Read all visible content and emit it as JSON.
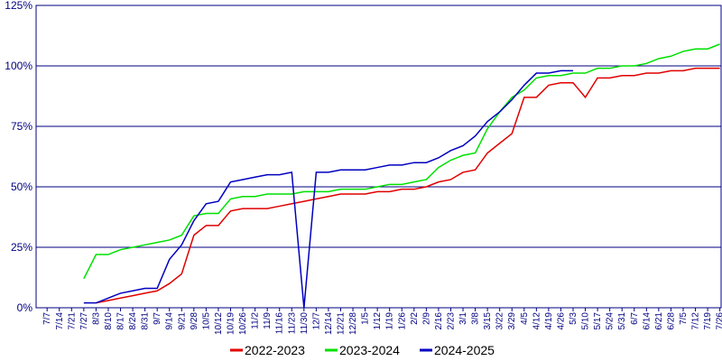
{
  "chart_data": {
    "type": "line",
    "categories": [
      "7/7",
      "7/14",
      "7/21",
      "7/27",
      "8/3",
      "8/10",
      "8/17",
      "8/24",
      "8/31",
      "9/7",
      "9/14",
      "9/21",
      "9/28",
      "10/5",
      "10/12",
      "10/19",
      "10/26",
      "11/2",
      "11/9",
      "11/16",
      "11/23",
      "11/30",
      "12/7",
      "12/14",
      "12/21",
      "12/28",
      "1/5",
      "1/12",
      "1/19",
      "1/26",
      "2/2",
      "2/9",
      "2/16",
      "2/23",
      "3/1",
      "3/8",
      "3/15",
      "3/22",
      "3/29",
      "4/5",
      "4/12",
      "4/19",
      "4/26",
      "5/3",
      "5/10",
      "5/17",
      "5/24",
      "5/31",
      "6/7",
      "6/14",
      "6/21",
      "6/28",
      "7/5",
      "7/12",
      "7/19",
      "7/26"
    ],
    "series": [
      {
        "name": "2022-2023",
        "color": "#e00000",
        "values": [
          null,
          null,
          null,
          null,
          2,
          3,
          4,
          5,
          6,
          7,
          10,
          14,
          30,
          34,
          34,
          40,
          41,
          41,
          41,
          42,
          43,
          44,
          45,
          46,
          47,
          47,
          47,
          48,
          48,
          49,
          49,
          50,
          52,
          53,
          56,
          57,
          64,
          68,
          72,
          87,
          87,
          92,
          93,
          93,
          87,
          95,
          95,
          96,
          96,
          97,
          97,
          98,
          98,
          99,
          99,
          99
        ]
      },
      {
        "name": "2023-2024",
        "color": "#00e000",
        "values": [
          null,
          null,
          null,
          12,
          22,
          22,
          24,
          25,
          26,
          27,
          28,
          30,
          38,
          39,
          39,
          45,
          46,
          46,
          47,
          47,
          47,
          48,
          48,
          48,
          49,
          49,
          49,
          50,
          51,
          51,
          52,
          53,
          58,
          61,
          63,
          64,
          74,
          81,
          87,
          90,
          95,
          96,
          96,
          97,
          97,
          99,
          99,
          100,
          100,
          101,
          103,
          104,
          106,
          107,
          107,
          109
        ]
      },
      {
        "name": "2024-2025",
        "color": "#0000c0",
        "values": [
          null,
          null,
          null,
          2,
          2,
          4,
          6,
          7,
          8,
          8,
          20,
          26,
          36,
          43,
          44,
          52,
          53,
          54,
          55,
          55,
          56,
          0,
          56,
          56,
          57,
          57,
          57,
          58,
          59,
          59,
          60,
          60,
          62,
          65,
          67,
          71,
          77,
          81,
          86,
          92,
          97,
          97,
          98,
          98,
          null,
          null,
          null,
          null,
          null,
          null,
          null,
          null,
          null,
          null,
          null,
          null
        ]
      }
    ],
    "ylim": [
      0,
      125
    ],
    "yticks": [
      {
        "value": 0,
        "label": "0%"
      },
      {
        "value": 25,
        "label": "25%"
      },
      {
        "value": 50,
        "label": "50%"
      },
      {
        "value": 75,
        "label": "75%"
      },
      {
        "value": 100,
        "label": "100%"
      },
      {
        "value": 125,
        "label": "125%"
      }
    ],
    "grid": true
  }
}
